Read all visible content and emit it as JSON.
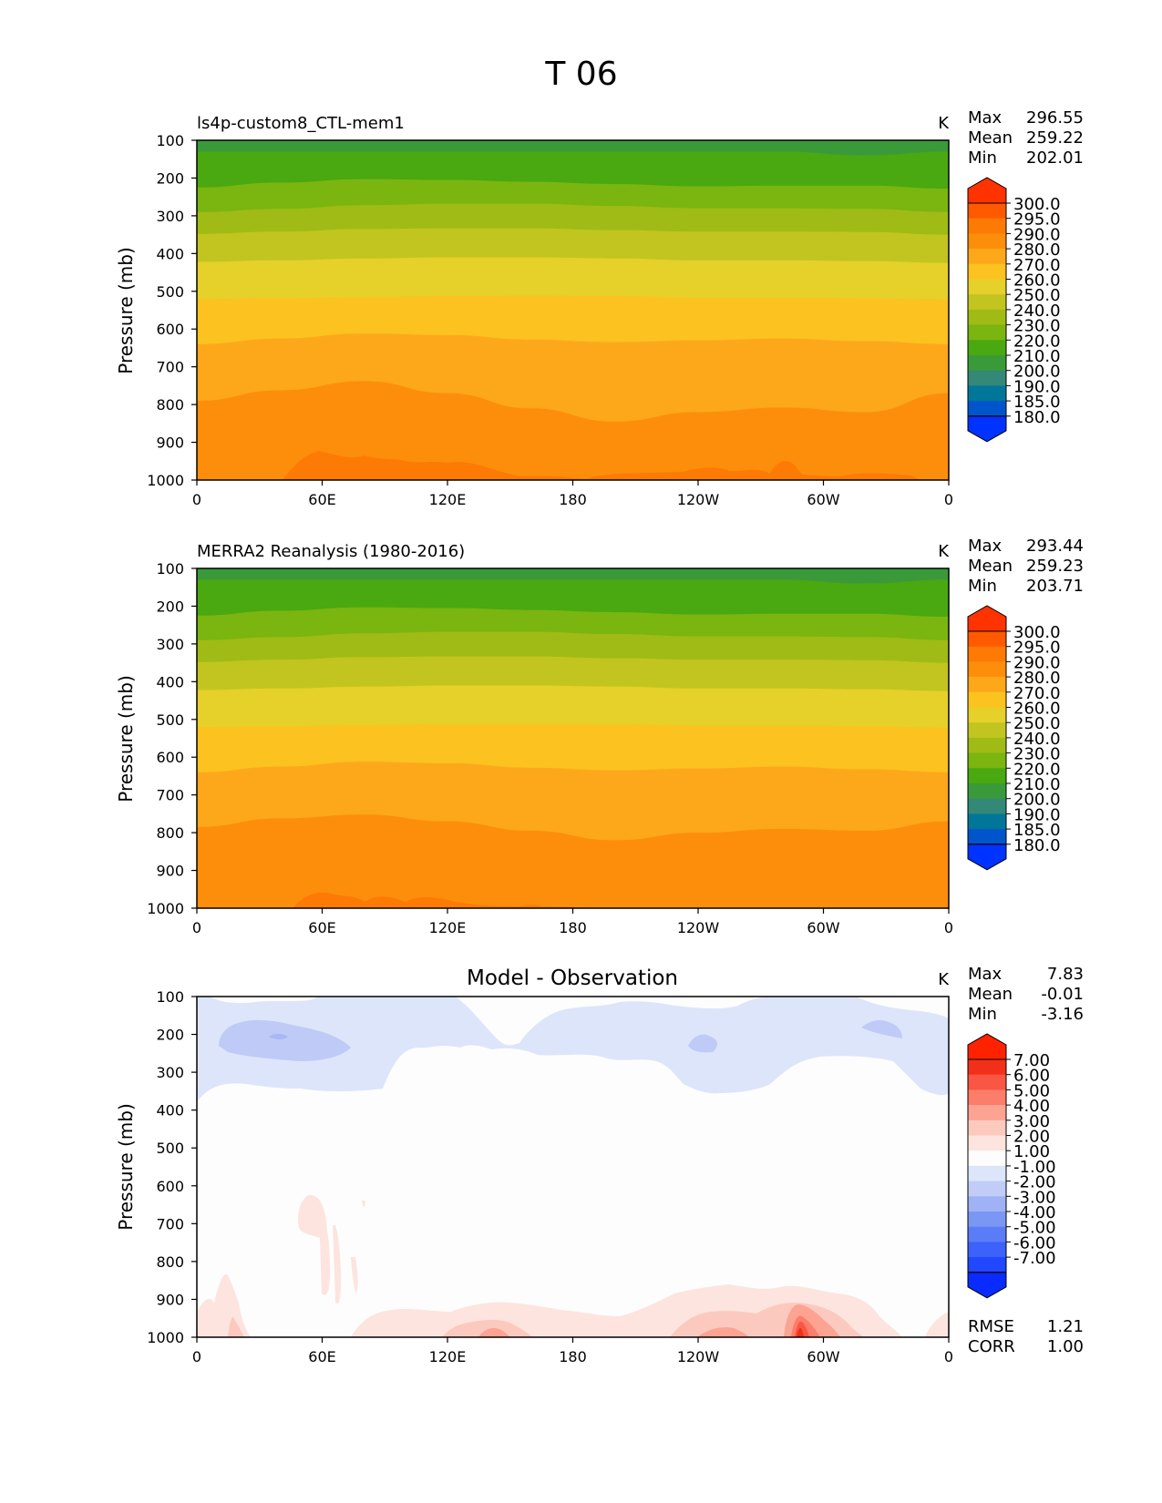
{
  "figure": {
    "title": "T 06"
  },
  "colorbars": {
    "abs": {
      "levels": [
        "180.0",
        "185.0",
        "190.0",
        "200.0",
        "210.0",
        "220.0",
        "230.0",
        "240.0",
        "250.0",
        "260.0",
        "270.0",
        "280.0",
        "290.0",
        "295.0",
        "300.0"
      ],
      "colors": [
        "#0033ff",
        "#0055cc",
        "#007799",
        "#338877",
        "#3a9a3a",
        "#4aa810",
        "#7ab510",
        "#a0bb15",
        "#c2c51f",
        "#e6d02a",
        "#fcc21f",
        "#fda81a",
        "#fd8e0c",
        "#fd7a05",
        "#ff5a00",
        "#ff3300"
      ]
    },
    "diff": {
      "levels": [
        "-7.00",
        "-6.00",
        "-5.00",
        "-4.00",
        "-3.00",
        "-2.00",
        "-1.00",
        "1.00",
        "2.00",
        "3.00",
        "4.00",
        "5.00",
        "6.00",
        "7.00"
      ],
      "colors": [
        "#0a2bff",
        "#2147ff",
        "#3d62fb",
        "#5b7cf7",
        "#7b97f4",
        "#9fb2f5",
        "#c1cdf7",
        "#dde5fb",
        "#fdfdfd",
        "#fde4df",
        "#fcc9bf",
        "#fca392",
        "#fc7d6a",
        "#f95643",
        "#f2301a",
        "#ff2200"
      ]
    }
  },
  "chart_data": [
    {
      "type": "filled-contour",
      "title": "ls4p-custom8_CTL-mem1",
      "units": "K",
      "stats": {
        "max_label": "Max",
        "max": "296.55",
        "mean_label": "Mean",
        "mean": "259.22",
        "min_label": "Min",
        "min": "202.01"
      },
      "ylabel": "Pressure (mb)",
      "yticks": [
        "100",
        "200",
        "300",
        "400",
        "500",
        "600",
        "700",
        "800",
        "900",
        "1000"
      ],
      "xticks": [
        "0",
        "60E",
        "120E",
        "180",
        "120W",
        "60W",
        "0"
      ],
      "ylim": [
        1000,
        100
      ],
      "xlim": [
        0,
        360
      ],
      "colorbar": "abs",
      "bands": [
        {
          "color": "#3a9a3a",
          "lower_hPa": [
            130,
            130,
            130,
            130,
            130,
            130,
            130,
            130,
            140,
            130
          ]
        },
        {
          "color": "#4aa810",
          "lower_hPa": [
            225,
            212,
            203,
            205,
            210,
            216,
            222,
            220,
            220,
            228
          ]
        },
        {
          "color": "#7ab510",
          "lower_hPa": [
            290,
            282,
            272,
            268,
            268,
            274,
            280,
            280,
            282,
            290
          ]
        },
        {
          "color": "#a0bb15",
          "lower_hPa": [
            348,
            342,
            335,
            333,
            333,
            338,
            342,
            342,
            343,
            350
          ]
        },
        {
          "color": "#c2c51f",
          "lower_hPa": [
            422,
            418,
            413,
            410,
            410,
            413,
            418,
            418,
            420,
            425
          ]
        },
        {
          "color": "#e6d02a",
          "lower_hPa": [
            520,
            518,
            515,
            513,
            512,
            513,
            517,
            517,
            518,
            522
          ]
        },
        {
          "color": "#fcc21f",
          "lower_hPa": [
            640,
            625,
            612,
            616,
            628,
            635,
            630,
            625,
            632,
            640
          ]
        },
        {
          "color": "#fda81a",
          "lower_hPa": [
            790,
            762,
            738,
            770,
            810,
            845,
            820,
            808,
            820,
            770
          ]
        },
        {
          "color": "#fd8e0c",
          "lower_hPa": [
            1000,
            1000,
            990,
            985,
            990,
            998,
            995,
            985,
            993,
            1000
          ]
        }
      ],
      "x_labels_at": [
        0,
        60,
        120,
        180,
        240,
        300,
        360
      ]
    },
    {
      "type": "filled-contour",
      "title": "MERRA2 Reanalysis (1980-2016)",
      "units": "K",
      "stats": {
        "max_label": "Max",
        "max": "293.44",
        "mean_label": "Mean",
        "mean": "259.23",
        "min_label": "Min",
        "min": "203.71"
      },
      "ylabel": "Pressure (mb)",
      "yticks": [
        "100",
        "200",
        "300",
        "400",
        "500",
        "600",
        "700",
        "800",
        "900",
        "1000"
      ],
      "xticks": [
        "0",
        "60E",
        "120E",
        "180",
        "120W",
        "60W",
        "0"
      ],
      "ylim": [
        1000,
        100
      ],
      "xlim": [
        0,
        360
      ],
      "colorbar": "abs",
      "bands": [
        {
          "color": "#3a9a3a",
          "lower_hPa": [
            130,
            130,
            130,
            130,
            130,
            130,
            130,
            130,
            140,
            130
          ]
        },
        {
          "color": "#4aa810",
          "lower_hPa": [
            225,
            212,
            203,
            205,
            210,
            216,
            222,
            220,
            220,
            228
          ]
        },
        {
          "color": "#7ab510",
          "lower_hPa": [
            290,
            282,
            272,
            268,
            268,
            274,
            280,
            280,
            282,
            290
          ]
        },
        {
          "color": "#a0bb15",
          "lower_hPa": [
            348,
            342,
            335,
            333,
            333,
            338,
            342,
            342,
            343,
            350
          ]
        },
        {
          "color": "#c2c51f",
          "lower_hPa": [
            422,
            418,
            413,
            410,
            410,
            413,
            418,
            418,
            420,
            425
          ]
        },
        {
          "color": "#e6d02a",
          "lower_hPa": [
            520,
            518,
            515,
            513,
            512,
            513,
            517,
            517,
            518,
            522
          ]
        },
        {
          "color": "#fcc21f",
          "lower_hPa": [
            640,
            625,
            612,
            616,
            628,
            635,
            630,
            625,
            632,
            640
          ]
        },
        {
          "color": "#fda81a",
          "lower_hPa": [
            785,
            762,
            752,
            770,
            795,
            820,
            800,
            790,
            795,
            770
          ]
        },
        {
          "color": "#fd8e0c",
          "lower_hPa": [
            1000,
            1000,
            993,
            990,
            995,
            1000,
            1000,
            1000,
            1000,
            1000
          ]
        }
      ]
    },
    {
      "type": "filled-contour",
      "title": "Model - Observation",
      "units": "K",
      "stats": {
        "max_label": "Max",
        "max": "7.83",
        "mean_label": "Mean",
        "mean": "-0.01",
        "min_label": "Min",
        "min": "-3.16"
      },
      "extra_stats": {
        "rmse_label": "RMSE",
        "rmse": "1.21",
        "corr_label": "CORR",
        "corr": "1.00"
      },
      "ylabel": "Pressure (mb)",
      "yticks": [
        "100",
        "200",
        "300",
        "400",
        "500",
        "600",
        "700",
        "800",
        "900",
        "1000"
      ],
      "xticks": [
        "0",
        "60E",
        "120E",
        "180",
        "120W",
        "60W",
        "0"
      ],
      "ylim": [
        1000,
        100
      ],
      "xlim": [
        0,
        360
      ],
      "colorbar": "diff"
    }
  ]
}
